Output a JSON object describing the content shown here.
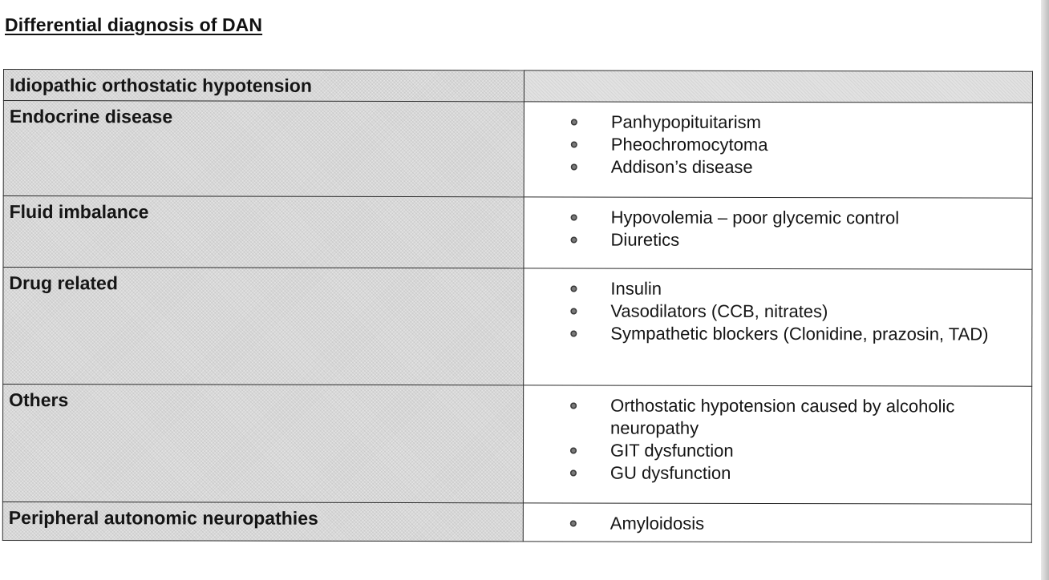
{
  "title": "Differential diagnosis of DAN",
  "rows": [
    {
      "category": "Idiopathic orthostatic hypotension",
      "items": []
    },
    {
      "category": "Endocrine disease",
      "items": [
        "Panhypopituitarism",
        "Pheochromocytoma",
        "Addison’s disease"
      ]
    },
    {
      "category": "Fluid imbalance",
      "items": [
        "Hypovolemia – poor glycemic control",
        "Diuretics"
      ]
    },
    {
      "category": "Drug related",
      "items": [
        "Insulin",
        "Vasodilators (CCB, nitrates)",
        "Sympathetic blockers (Clonidine, prazosin, TAD)"
      ]
    },
    {
      "category": "Others",
      "items": [
        "Orthostatic hypotension caused by alcoholic neuropathy",
        "GIT dysfunction",
        "GU dysfunction"
      ]
    },
    {
      "category": "Peripheral autonomic neuropathies",
      "items": [
        "Amyloidosis"
      ]
    }
  ]
}
